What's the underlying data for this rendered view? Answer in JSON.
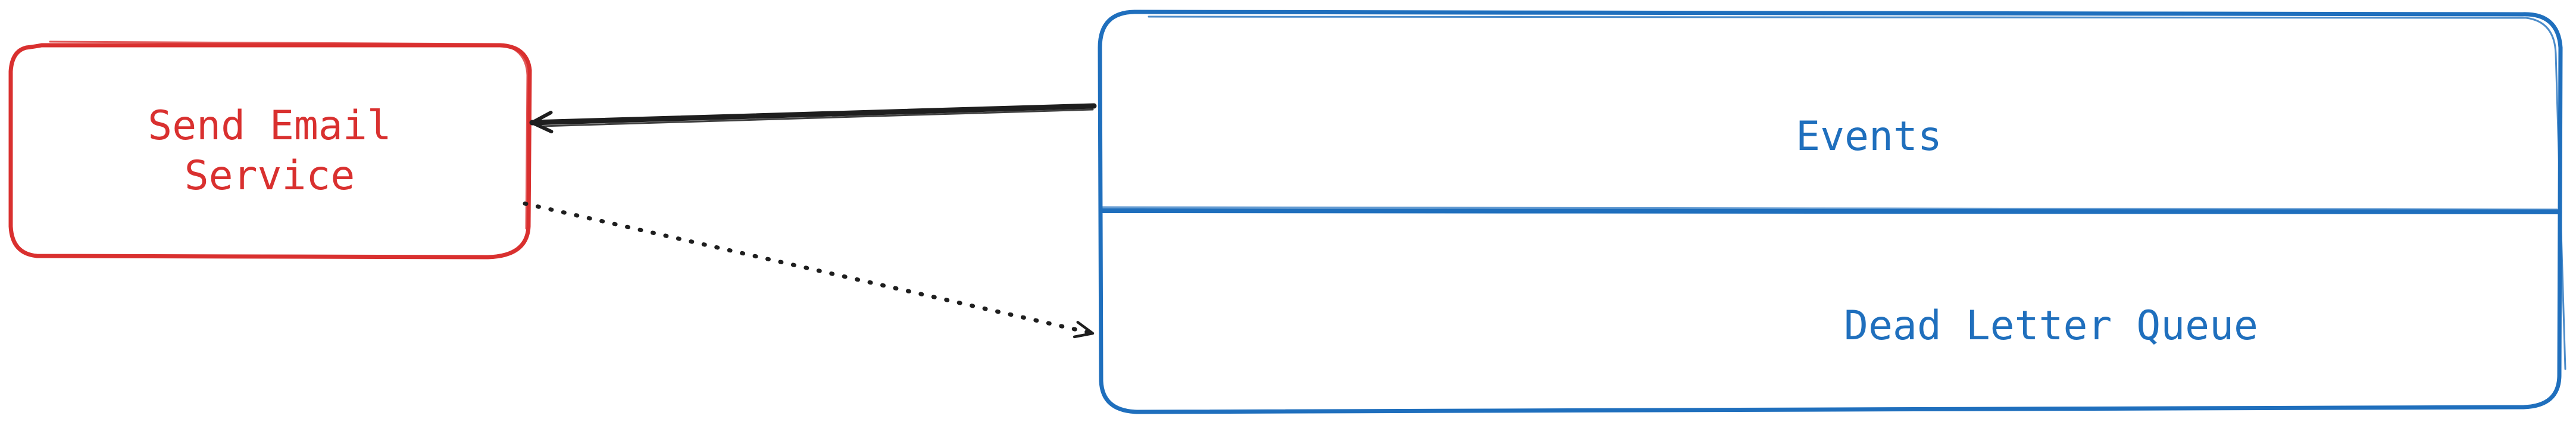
{
  "diagram": {
    "service": {
      "label_line1": "Send Email",
      "label_line2": "Service",
      "color": "#d9302f"
    },
    "queue": {
      "events_label": "Events",
      "dlq_label": "Dead Letter Queue",
      "color": "#1f6fbd"
    },
    "edges": [
      {
        "from": "Events",
        "to": "Send Email Service",
        "style": "solid"
      },
      {
        "from": "Send Email Service",
        "to": "Dead Letter Queue",
        "style": "dotted"
      }
    ],
    "arrow_color": "#1e1e1e"
  }
}
